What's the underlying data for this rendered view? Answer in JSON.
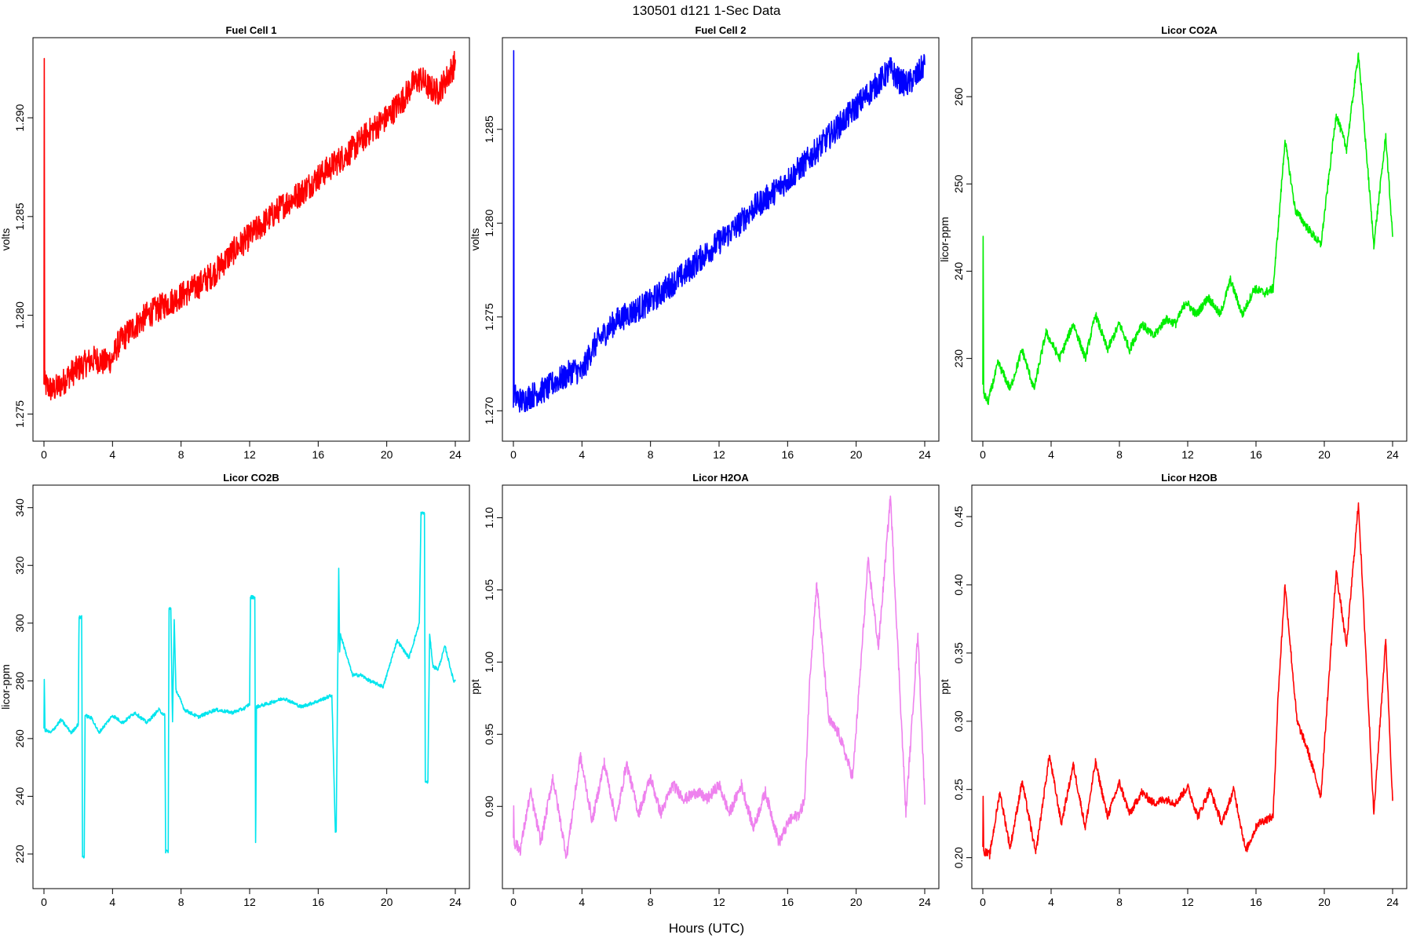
{
  "figure": {
    "title": "130501   d121   1-Sec Data",
    "xlabel": "Hours (UTC)"
  },
  "chart_data": [
    {
      "type": "line",
      "title": "Fuel Cell 1",
      "ylabel": "volts",
      "color": "#ff0000",
      "xlim": [
        0,
        24
      ],
      "ylim": [
        1.2745,
        1.2935
      ],
      "xticks": [
        0,
        4,
        8,
        12,
        16,
        20,
        24
      ],
      "yticks": [
        1.275,
        1.28,
        1.285,
        1.29
      ],
      "ytick_labels": [
        "1.275",
        "1.280",
        "1.285",
        "1.290"
      ],
      "x": [
        0,
        0.02,
        0.04,
        0.5,
        1,
        1.5,
        2,
        2.5,
        3,
        3.5,
        4,
        4.3,
        4.6,
        5,
        6,
        7,
        8,
        9,
        10,
        11,
        12,
        13,
        14,
        15,
        16,
        17,
        18,
        19,
        20,
        21,
        21.5,
        22,
        22.5,
        23,
        23.5,
        24
      ],
      "y": [
        1.2765,
        1.293,
        1.2765,
        1.2762,
        1.2765,
        1.277,
        1.2773,
        1.2776,
        1.2778,
        1.2776,
        1.2778,
        1.2785,
        1.2788,
        1.2792,
        1.28,
        1.2805,
        1.281,
        1.2815,
        1.2822,
        1.2832,
        1.284,
        1.2848,
        1.2856,
        1.2862,
        1.287,
        1.2877,
        1.2884,
        1.2893,
        1.29,
        1.291,
        1.2917,
        1.292,
        1.2915,
        1.2913,
        1.292,
        1.2928
      ],
      "noise": 0.0007
    },
    {
      "type": "line",
      "title": "Fuel Cell 2",
      "ylabel": "volts",
      "color": "#0000ff",
      "xlim": [
        0,
        24
      ],
      "ylim": [
        1.2693,
        1.2893
      ],
      "xticks": [
        0,
        4,
        8,
        12,
        16,
        20,
        24
      ],
      "yticks": [
        1.27,
        1.275,
        1.28,
        1.285
      ],
      "ytick_labels": [
        "1.270",
        "1.275",
        "1.280",
        "1.285"
      ],
      "x": [
        0,
        0.02,
        0.04,
        0.5,
        1,
        1.5,
        2,
        2.5,
        3,
        3.5,
        4,
        4.3,
        4.6,
        5,
        6,
        7,
        8,
        9,
        10,
        11,
        12,
        13,
        14,
        15,
        16,
        17,
        18,
        19,
        20,
        21,
        21.5,
        22,
        22.5,
        23,
        23.5,
        24
      ],
      "y": [
        1.2708,
        1.2886,
        1.2708,
        1.2705,
        1.2708,
        1.271,
        1.2712,
        1.2716,
        1.2718,
        1.2722,
        1.272,
        1.2727,
        1.2733,
        1.2738,
        1.2748,
        1.2753,
        1.2758,
        1.2766,
        1.2773,
        1.2782,
        1.279,
        1.2798,
        1.2808,
        1.2815,
        1.2823,
        1.2832,
        1.2842,
        1.2852,
        1.2862,
        1.2872,
        1.2877,
        1.2882,
        1.2876,
        1.2874,
        1.2878,
        1.2885
      ],
      "noise": 0.0007
    },
    {
      "type": "line",
      "title": "Licor CO2A",
      "ylabel": "licor-ppm",
      "color": "#00ee00",
      "xlim": [
        0,
        24
      ],
      "ylim": [
        222.5,
        265.5
      ],
      "xticks": [
        0,
        4,
        8,
        12,
        16,
        20,
        24
      ],
      "yticks": [
        230,
        240,
        250,
        260
      ],
      "ytick_labels": [
        "230",
        "240",
        "250",
        "260"
      ],
      "x": [
        0,
        0.02,
        0.05,
        0.3,
        0.9,
        1.6,
        2.3,
        3.0,
        3.7,
        4.5,
        5.3,
        6.0,
        6.6,
        7.3,
        8.0,
        8.6,
        9.3,
        10.0,
        10.7,
        11.3,
        11.9,
        12.5,
        13.2,
        13.9,
        14.5,
        15.2,
        15.9,
        16.5,
        17.0,
        17.3,
        17.7,
        18.3,
        19.0,
        19.8,
        20.7,
        21.3,
        22.0,
        22.9,
        23.6,
        24
      ],
      "y": [
        227,
        244,
        226,
        225,
        229.5,
        226.5,
        231,
        226.5,
        233,
        230,
        234,
        230,
        235,
        231,
        234,
        231,
        234,
        232.5,
        234.5,
        234,
        236.5,
        235,
        237,
        235,
        239,
        235,
        238,
        237.5,
        238,
        245,
        255,
        247,
        245,
        243,
        258,
        254,
        265,
        243,
        255.5,
        244
      ],
      "noise": 0.5
    },
    {
      "type": "line",
      "title": "Licor CO2B",
      "ylabel": "licor-ppm",
      "color": "#00e5ee",
      "xlim": [
        0,
        24
      ],
      "ylim": [
        214,
        344
      ],
      "xticks": [
        0,
        4,
        8,
        12,
        16,
        20,
        24
      ],
      "yticks": [
        220,
        240,
        260,
        280,
        300,
        320,
        340
      ],
      "ytick_labels": [
        "220",
        "240",
        "260",
        "280",
        "300",
        "320",
        "340"
      ],
      "x": [
        0,
        0.02,
        0.06,
        0.4,
        1.0,
        1.6,
        2.0,
        2.05,
        2.2,
        2.25,
        2.35,
        2.4,
        2.8,
        3.2,
        4.0,
        4.6,
        5.3,
        6.0,
        6.7,
        7.05,
        7.1,
        7.25,
        7.3,
        7.4,
        7.5,
        7.6,
        7.7,
        8.2,
        9.0,
        10.0,
        11.0,
        11.7,
        12.0,
        12.05,
        12.3,
        12.35,
        12.4,
        13.0,
        14.0,
        15.0,
        16.0,
        16.8,
        17.0,
        17.05,
        17.2,
        17.25,
        17.3,
        17.6,
        18.0,
        18.5,
        19.0,
        19.8,
        20.6,
        21.3,
        21.9,
        22.0,
        22.2,
        22.25,
        22.4,
        22.5,
        22.7,
        23.0,
        23.4,
        23.9,
        24
      ],
      "y": [
        264,
        280,
        263,
        262,
        266.5,
        262,
        265,
        302,
        302,
        219,
        219,
        268,
        267,
        262,
        268,
        265.5,
        269,
        265.5,
        270,
        268,
        221,
        221,
        305,
        305,
        266,
        301,
        277,
        270,
        267.5,
        270,
        269,
        270.5,
        272,
        309,
        309,
        224,
        271,
        272,
        274,
        271,
        273,
        275,
        228,
        228,
        319,
        290,
        296,
        290,
        282,
        282,
        280,
        278,
        294,
        288,
        300,
        338,
        338,
        245,
        245,
        296,
        285,
        284,
        292,
        280,
        280
      ],
      "noise": 0.6
    },
    {
      "type": "line",
      "title": "Licor H2OA",
      "ylabel": "ppt",
      "color": "#ee82ee",
      "xlim": [
        0,
        24
      ],
      "ylim": [
        0.855,
        1.115
      ],
      "xticks": [
        0,
        4,
        8,
        12,
        16,
        20,
        24
      ],
      "yticks": [
        0.9,
        0.95,
        1.0,
        1.05,
        1.1
      ],
      "ytick_labels": [
        "0.90",
        "0.95",
        "1.00",
        "1.05",
        "1.10"
      ],
      "x": [
        0,
        0.02,
        0.05,
        0.4,
        1.0,
        1.6,
        2.3,
        3.1,
        3.9,
        4.6,
        5.3,
        6.0,
        6.6,
        7.3,
        8.0,
        8.6,
        9.3,
        10.0,
        10.7,
        11.3,
        12.0,
        12.6,
        13.3,
        14.0,
        14.7,
        15.5,
        16.1,
        16.7,
        17.0,
        17.3,
        17.7,
        18.4,
        19.0,
        19.8,
        20.7,
        21.3,
        22.0,
        22.9,
        23.6,
        24
      ],
      "y": [
        0.88,
        0.9,
        0.875,
        0.87,
        0.91,
        0.875,
        0.92,
        0.865,
        0.935,
        0.89,
        0.93,
        0.89,
        0.93,
        0.895,
        0.92,
        0.895,
        0.915,
        0.905,
        0.91,
        0.905,
        0.915,
        0.895,
        0.915,
        0.885,
        0.91,
        0.875,
        0.89,
        0.895,
        0.905,
        0.99,
        1.055,
        0.96,
        0.95,
        0.92,
        1.07,
        1.01,
        1.115,
        0.895,
        1.02,
        0.905
      ],
      "noise": 0.004
    },
    {
      "type": "line",
      "title": "Licor H2OB",
      "ylabel": "ppt",
      "color": "#ff0000",
      "xlim": [
        0,
        24
      ],
      "ylim": [
        0.19,
        0.465
      ],
      "xticks": [
        0,
        4,
        8,
        12,
        16,
        20,
        24
      ],
      "yticks": [
        0.2,
        0.25,
        0.3,
        0.35,
        0.4,
        0.45
      ],
      "ytick_labels": [
        "0.20",
        "0.25",
        "0.30",
        "0.35",
        "0.40",
        "0.45"
      ],
      "x": [
        0,
        0.02,
        0.05,
        0.4,
        1.0,
        1.6,
        2.3,
        3.1,
        3.9,
        4.6,
        5.3,
        6.0,
        6.6,
        7.3,
        8.0,
        8.6,
        9.3,
        10.0,
        10.7,
        11.3,
        12.0,
        12.6,
        13.3,
        14.0,
        14.7,
        15.4,
        16.1,
        16.6,
        17.0,
        17.3,
        17.7,
        18.4,
        19.0,
        19.8,
        20.7,
        21.3,
        22.0,
        22.9,
        23.6,
        24
      ],
      "y": [
        0.21,
        0.245,
        0.205,
        0.202,
        0.248,
        0.207,
        0.256,
        0.203,
        0.275,
        0.225,
        0.268,
        0.222,
        0.27,
        0.23,
        0.255,
        0.232,
        0.248,
        0.24,
        0.243,
        0.24,
        0.252,
        0.23,
        0.25,
        0.225,
        0.25,
        0.205,
        0.225,
        0.228,
        0.23,
        0.32,
        0.4,
        0.3,
        0.28,
        0.245,
        0.41,
        0.355,
        0.46,
        0.232,
        0.36,
        0.242
      ],
      "noise": 0.003
    }
  ]
}
